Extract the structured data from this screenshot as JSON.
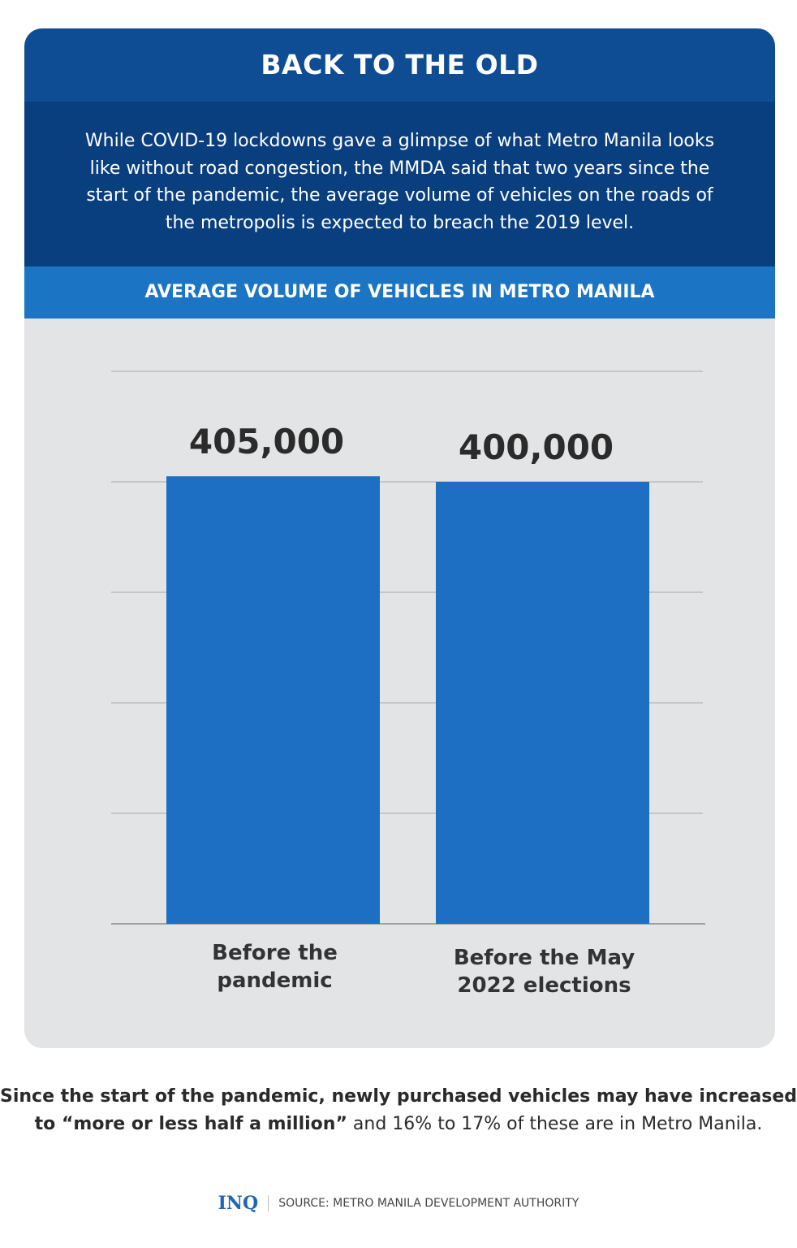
{
  "title": "BACK TO THE OLD",
  "description": "While COVID-19 lockdowns gave a glimpse of what Metro Manila looks like without road congestion, the MMDA said that two years since the start of the pandemic, the average volume of vehicles on the roads of the metropolis is expected to breach the 2019 level.",
  "colors": {
    "header": "#0e4d93",
    "description_band": "#0a3f7f",
    "subtitle_band": "#1b74c4",
    "bar": "#1d6fc4",
    "chart_bg": "#e3e4e6"
  },
  "chart_data": {
    "type": "bar",
    "title": "AVERAGE VOLUME OF VEHICLES IN METRO MANILA",
    "categories": [
      [
        "Before the",
        "pandemic"
      ],
      [
        "Before the May",
        "2022 elections"
      ]
    ],
    "values": [
      405000,
      400000
    ],
    "value_labels": [
      "405,000",
      "400,000"
    ],
    "ylim": [
      0,
      500000
    ],
    "grid": true,
    "grid_step": 100000,
    "axis_tick_labels_shown": false
  },
  "note": {
    "bold": "Since the start of the pandemic, newly purchased vehicles may have increased to “more or less half a million”",
    "rest": " and 16% to 17% of these are in Metro Manila."
  },
  "footer": {
    "logo": "INQ",
    "source": "SOURCE: METRO MANILA DEVELOPMENT AUTHORITY"
  }
}
